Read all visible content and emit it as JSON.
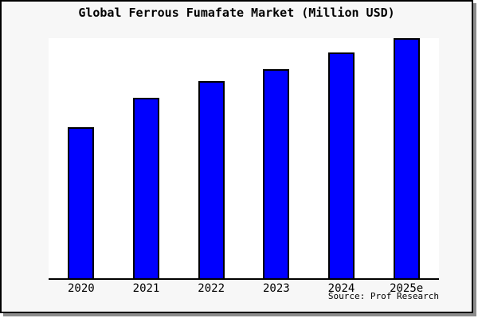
{
  "title": "Global Ferrous Fumafate Market (Million USD)",
  "source_label": "Source: Prof Research",
  "colors": {
    "bar": "#0000ff",
    "bar_border": "#000000",
    "figure_bg": "#f7f7f7",
    "plot_bg": "#ffffff",
    "axis": "#000000"
  },
  "chart_data": {
    "type": "bar",
    "title": "Global Ferrous Fumafate Market (Million USD)",
    "categories": [
      "2020",
      "2021",
      "2022",
      "2023",
      "2024",
      "2025e"
    ],
    "values": [
      63,
      75,
      82,
      87,
      94,
      100
    ],
    "xlabel": "",
    "ylabel": "",
    "ylim": [
      0,
      100
    ],
    "y_axis_labeled": false,
    "grid": false,
    "legend": "none",
    "bar_color": "#0000ff",
    "annotations": [
      "Source: Prof Research"
    ]
  }
}
